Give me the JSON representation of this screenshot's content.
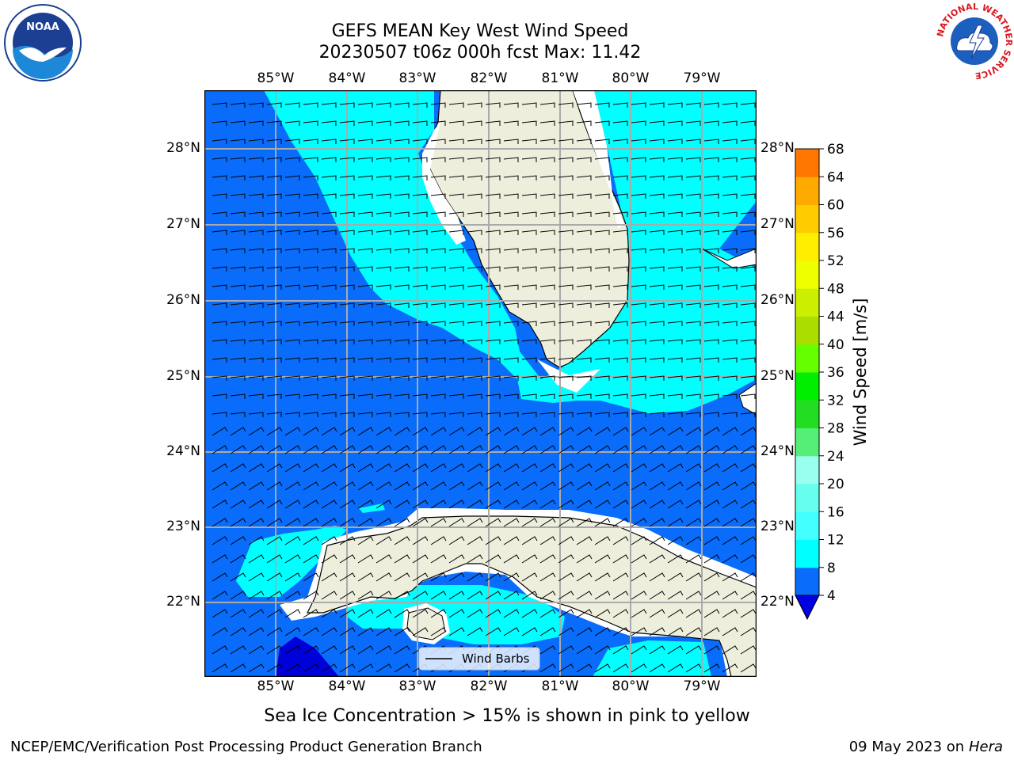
{
  "title": {
    "line1": "GEFS MEAN Key West Wind Speed",
    "line2": "20230507 t06z 000h fcst   Max: 11.42"
  },
  "map": {
    "lon_labels": [
      "85°W",
      "84°W",
      "83°W",
      "82°W",
      "81°W",
      "80°W",
      "79°W"
    ],
    "lat_labels": [
      "28°N",
      "27°N",
      "26°N",
      "25°N",
      "24°N",
      "23°N",
      "22°N"
    ],
    "legend_label": "Wind Barbs",
    "colors": {
      "band_4_8": "#0a6cfb",
      "band_8_12": "#00ffff",
      "band_0_4": "#0000d8",
      "land": "#eeeedd",
      "grid": "#aaaaaa"
    }
  },
  "colorbar": {
    "label": "Wind Speed [m/s]",
    "ticks": [
      "4",
      "8",
      "12",
      "16",
      "20",
      "24",
      "28",
      "32",
      "36",
      "40",
      "44",
      "48",
      "52",
      "56",
      "60",
      "64",
      "68"
    ],
    "colors": [
      "#0a6cfb",
      "#00ffff",
      "#44ffff",
      "#66ffee",
      "#99ffee",
      "#55ee77",
      "#22dd22",
      "#00ee00",
      "#66ff00",
      "#aadd00",
      "#ccee00",
      "#eeff00",
      "#ffee00",
      "#ffcc00",
      "#ffaa00",
      "#ff7700",
      "#ff4400",
      "#ff0000"
    ]
  },
  "footer": {
    "note": "Sea Ice Concentration > 15% is shown in pink to yellow",
    "credit": "NCEP/EMC/Verification Post Processing Product Generation Branch",
    "date": "09 May 2023 on",
    "machine": "Hera"
  },
  "logos": {
    "noaa_text": "NOAA",
    "nws_text": "NATIONAL WEATHER SERVICE"
  }
}
